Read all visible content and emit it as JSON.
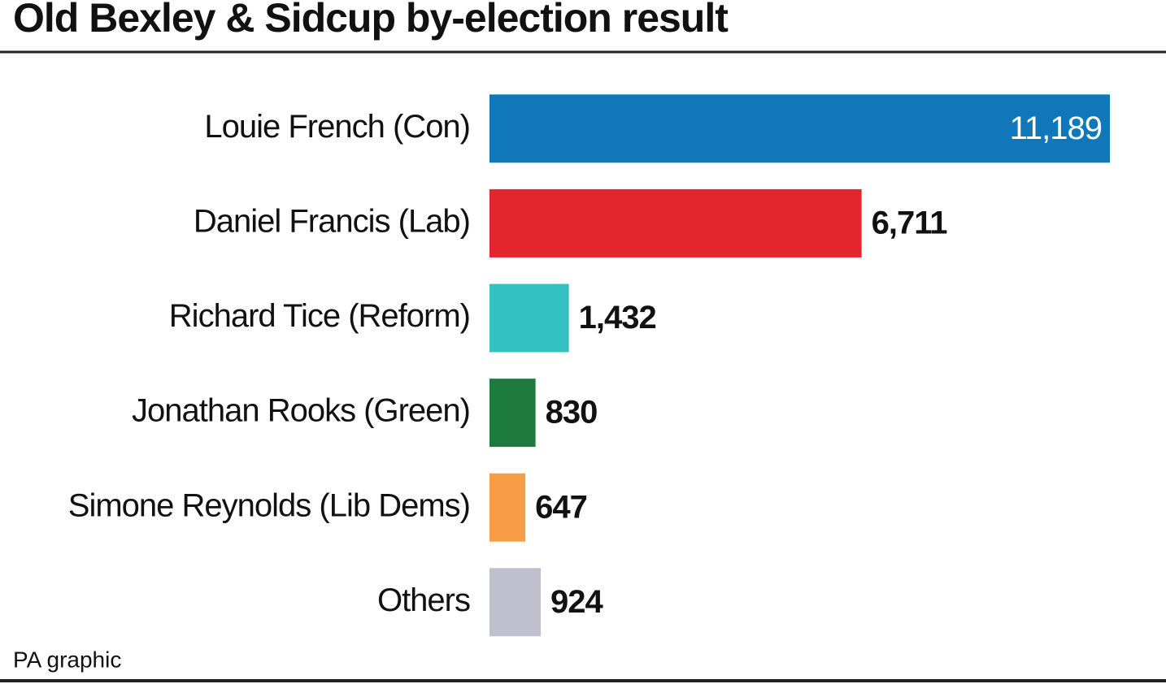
{
  "chart_data": {
    "type": "bar",
    "orientation": "horizontal",
    "title": "Old Bexley & Sidcup by-election result",
    "source": "PA graphic",
    "categories": [
      "Louie French (Con)",
      "Daniel Francis (Lab)",
      "Richard Tice (Reform)",
      "Jonathan Rooks (Green)",
      "Simone Reynolds (Lib Dems)",
      "Others"
    ],
    "values": [
      11189,
      6711,
      1432,
      830,
      647,
      924
    ],
    "value_labels": [
      "11,189",
      "6,711",
      "1,432",
      "830",
      "647",
      "924"
    ],
    "colors": [
      "#1077b8",
      "#e3262d",
      "#33c1c3",
      "#1e7b3e",
      "#f79d47",
      "#bfbfcf"
    ]
  }
}
